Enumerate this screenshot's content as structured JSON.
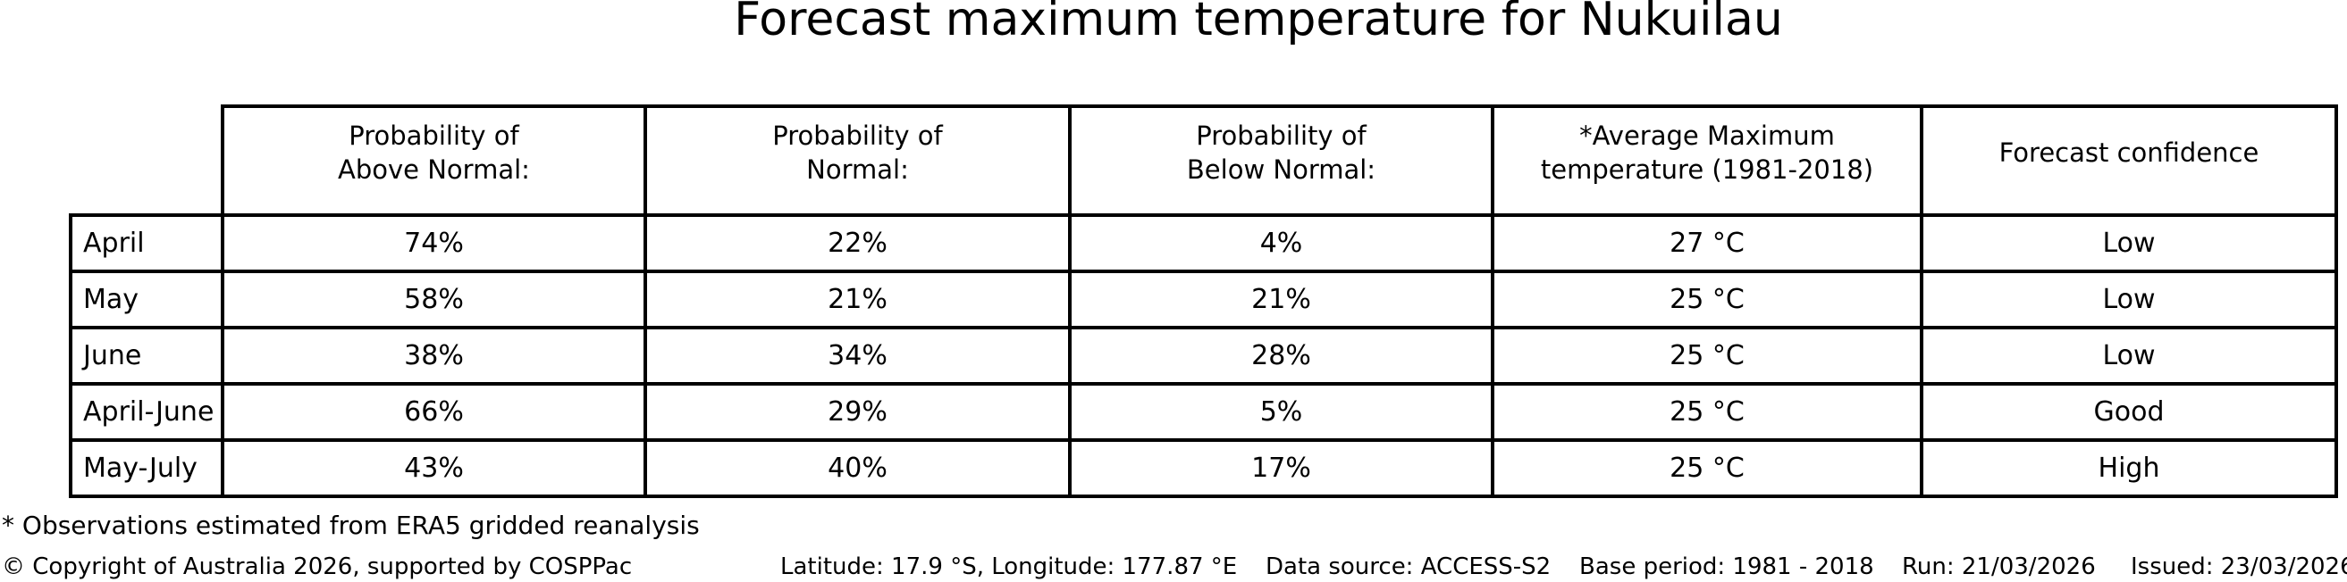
{
  "title": "Forecast maximum temperature for Nukuilau",
  "chart_data": {
    "type": "table",
    "title": "Forecast maximum temperature for Nukuilau",
    "columns": [
      "Probability of\nAbove Normal:",
      "Probability of\nNormal:",
      "Probability of\nBelow Normal:",
      "*Average Maximum\ntemperature (1981-2018)",
      "Forecast confidence"
    ],
    "rows": [
      [
        "April",
        "74%",
        "22%",
        "4%",
        "27 °C",
        "Low"
      ],
      [
        "May",
        "58%",
        "21%",
        "21%",
        "25 °C",
        "Low"
      ],
      [
        "June",
        "38%",
        "34%",
        "28%",
        "25 °C",
        "Low"
      ],
      [
        "April-June",
        "66%",
        "29%",
        "5%",
        "25 °C",
        "Good"
      ],
      [
        "May-July",
        "43%",
        "40%",
        "17%",
        "25 °C",
        "High"
      ]
    ],
    "probabilities_above_normal_pct": [
      74,
      58,
      38,
      66,
      43
    ],
    "probabilities_normal_pct": [
      22,
      21,
      34,
      29,
      40
    ],
    "probabilities_below_normal_pct": [
      4,
      21,
      28,
      5,
      17
    ],
    "average_max_temperature_c": [
      27,
      25,
      25,
      25,
      25
    ],
    "forecast_confidence": [
      "Low",
      "Low",
      "Low",
      "Good",
      "High"
    ]
  },
  "footnote": "* Observations estimated from ERA5 gridded reanalysis",
  "footer": {
    "copyright": "© Copyright of Australia 2026, supported by COSPPac",
    "location": "Latitude: 17.9 °S, Longitude: 177.87 °E",
    "data_source": "Data source: ACCESS-S2",
    "base_period": "Base period: 1981 - 2018",
    "run": "Run: 21/03/2026",
    "issued": "Issued: 23/03/2026"
  },
  "colors": {
    "text": "#000000",
    "background": "#ffffff",
    "table_border": "#000000"
  }
}
